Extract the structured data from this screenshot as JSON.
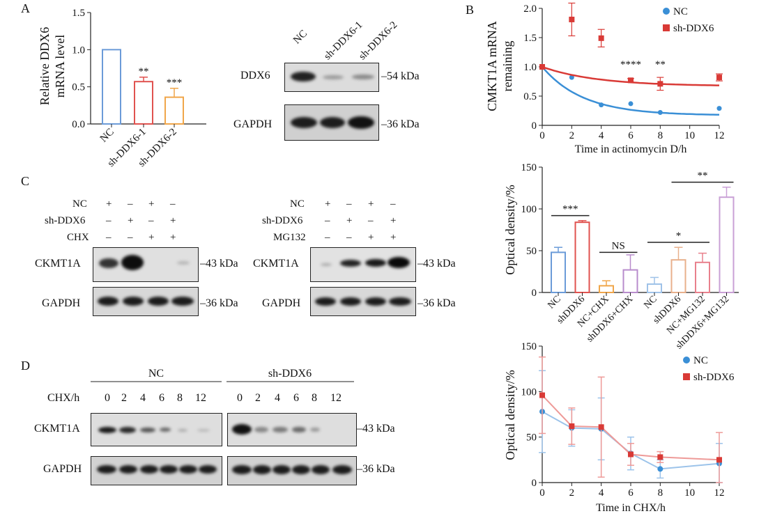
{
  "panels": {
    "A": "A",
    "B": "B",
    "C": "C",
    "D": "D"
  },
  "panelA": {
    "ylabel_line1": "Relative DDX6",
    "ylabel_line2": "mRNA level",
    "yticks": [
      "0.0",
      "0.5",
      "1.0",
      "1.5"
    ],
    "categories": [
      "NC",
      "sh-DDX6-1",
      "sh-DDX6-2"
    ],
    "values": [
      1.0,
      0.57,
      0.36
    ],
    "errors": [
      0.0,
      0.06,
      0.12
    ],
    "colors": [
      "#6b9bd8",
      "#e0524f",
      "#f0a64a"
    ],
    "sig": [
      "",
      "**",
      "***"
    ],
    "blot_lanes": [
      "NC",
      "sh-DDX6-1",
      "sh-DDX6-2"
    ],
    "blot_rows": [
      "DDX6",
      "GAPDH"
    ],
    "blot_sizes": [
      "54 kDa",
      "36 kDa"
    ]
  },
  "panelC": {
    "left_rows": [
      "NC",
      "sh-DDX6",
      "CHX"
    ],
    "left_signs": [
      [
        "+",
        "–",
        "+",
        "–"
      ],
      [
        "–",
        "+",
        "–",
        "+"
      ],
      [
        "–",
        "–",
        "+",
        "+"
      ]
    ],
    "right_rows": [
      "NC",
      "sh-DDX6",
      "MG132"
    ],
    "right_signs": [
      [
        "+",
        "–",
        "+",
        "–"
      ],
      [
        "–",
        "+",
        "–",
        "+"
      ],
      [
        "–",
        "–",
        "+",
        "+"
      ]
    ],
    "blot_rows": [
      "CKMT1A",
      "GAPDH"
    ],
    "blot_sizes": [
      "43 kDa",
      "36 kDa"
    ]
  },
  "panelD": {
    "groups": [
      "NC",
      "sh-DDX6"
    ],
    "time_label": "CHX/h",
    "times": [
      "0",
      "2",
      "4",
      "6",
      "8",
      "12"
    ],
    "blot_rows": [
      "CKMT1A",
      "GAPDH"
    ],
    "blot_sizes": [
      "43 kDa",
      "36 kDa"
    ]
  },
  "chart_data": [
    {
      "type": "scatter",
      "panel": "B",
      "xlabel": "Time in actinomycin D/h",
      "ylabel_line1": "CMKT1A mRNA",
      "ylabel_line2": "remaining",
      "xlim": [
        0,
        12
      ],
      "ylim": [
        0,
        2.0
      ],
      "xticks": [
        "0",
        "2",
        "4",
        "6",
        "8",
        "10",
        "12"
      ],
      "yticks": [
        "0",
        "0.5",
        "1.0",
        "1.5",
        "2.0"
      ],
      "series": [
        {
          "name": "NC",
          "color": "#3a8fd6",
          "marker": "circle",
          "x": [
            0,
            2,
            4,
            6,
            8,
            12
          ],
          "y": [
            1.0,
            0.82,
            0.35,
            0.37,
            0.22,
            0.29
          ],
          "err": [
            0,
            0,
            0,
            0,
            0,
            0
          ],
          "fit_plateau": 0.17,
          "fit_k": 0.36
        },
        {
          "name": "sh-DDX6",
          "color": "#d93a36",
          "marker": "square",
          "x": [
            0,
            2,
            4,
            6,
            8,
            12
          ],
          "y": [
            1.0,
            1.81,
            1.49,
            0.77,
            0.71,
            0.82
          ],
          "err": [
            0,
            0.28,
            0.15,
            0.03,
            0.11,
            0.06
          ],
          "fit_plateau": 0.67,
          "fit_k": 0.27
        }
      ],
      "annotations": [
        {
          "x": 6,
          "text": "****"
        },
        {
          "x": 8,
          "text": "**"
        }
      ],
      "legend": "top-right"
    },
    {
      "type": "bar",
      "panel": "C",
      "ylabel": "Optical density/%",
      "ylim": [
        0,
        150
      ],
      "yticks": [
        "0",
        "50",
        "100",
        "150"
      ],
      "categories": [
        "NC",
        "shDDX6",
        "NC+CHX",
        "shDDX6+CHX",
        "NC",
        "shDDX6",
        "NC+MG132",
        "shDDX6+MG132"
      ],
      "values": [
        48,
        84,
        8,
        27,
        10,
        39,
        36,
        114
      ],
      "errors": [
        6,
        2,
        6,
        18,
        8,
        15,
        11,
        12
      ],
      "colors": [
        "#6b9bd8",
        "#e0524f",
        "#f0a64a",
        "#b88ccc",
        "#9fc2e8",
        "#e8b08c",
        "#e8808c",
        "#c9a0d6"
      ],
      "comparisons": [
        {
          "from": 0,
          "to": 1,
          "text": "***",
          "y": 92
        },
        {
          "from": 2,
          "to": 3,
          "text": "NS",
          "y": 48
        },
        {
          "from": 4,
          "to": 6,
          "text": "*",
          "y": 60
        },
        {
          "from": 5,
          "to": 7,
          "text": "**",
          "y": 132
        }
      ]
    },
    {
      "type": "line",
      "panel": "D",
      "xlabel": "Time in CHX/h",
      "ylabel": "Optical density/%",
      "xlim": [
        0,
        12
      ],
      "ylim": [
        0,
        150
      ],
      "xticks": [
        "0",
        "2",
        "4",
        "6",
        "8",
        "10",
        "12"
      ],
      "yticks": [
        "0",
        "50",
        "100",
        "150"
      ],
      "series": [
        {
          "name": "NC",
          "color": "#3a8fd6",
          "marker": "circle",
          "x": [
            0,
            2,
            4,
            6,
            8,
            12
          ],
          "y": [
            78,
            60,
            59,
            32,
            15,
            21
          ],
          "err": [
            45,
            20,
            34,
            18,
            10,
            22
          ]
        },
        {
          "name": "sh-DDX6",
          "color": "#d93a36",
          "marker": "square",
          "x": [
            0,
            2,
            4,
            6,
            8,
            12
          ],
          "y": [
            96,
            62,
            61,
            31,
            28,
            25
          ],
          "err": [
            42,
            20,
            55,
            12,
            6,
            30
          ]
        }
      ],
      "legend": "top-right"
    }
  ]
}
